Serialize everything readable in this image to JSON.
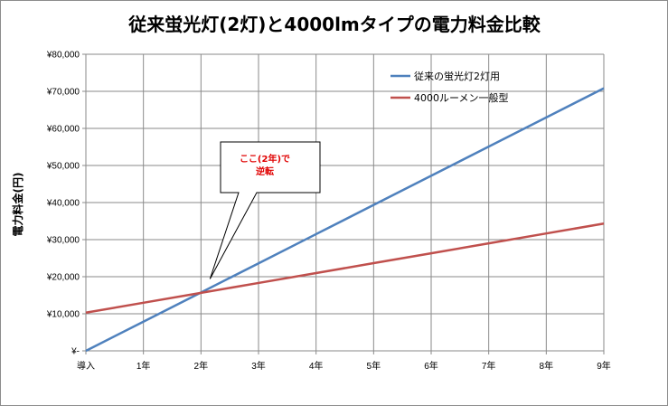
{
  "chart_data": {
    "type": "line",
    "title": "従来蛍光灯(2灯)と4000lmタイプの電力料金比較",
    "xlabel": "",
    "ylabel": "電力料金(円)",
    "categories": [
      "導入",
      "1年",
      "2年",
      "3年",
      "4年",
      "5年",
      "6年",
      "7年",
      "8年",
      "9年"
    ],
    "yticks": [
      "¥-",
      "¥10,000",
      "¥20,000",
      "¥30,000",
      "¥40,000",
      "¥50,000",
      "¥60,000",
      "¥70,000",
      "¥80,000"
    ],
    "ylim": [
      0,
      80000
    ],
    "grid": true,
    "legend_position": "top-right",
    "series": [
      {
        "name": "従来の蛍光灯2灯用",
        "color": "#4f81bd",
        "values": [
          0,
          7870,
          15740,
          23610,
          31480,
          39350,
          47220,
          55090,
          62960,
          70830
        ]
      },
      {
        "name": "4000ルーメン一般型",
        "color": "#c0504d",
        "values": [
          10300,
          12970,
          15640,
          18310,
          20980,
          23650,
          26320,
          28990,
          31660,
          34330
        ]
      }
    ],
    "annotation": {
      "lines": [
        "ここ(2年)で",
        "逆転"
      ],
      "x_category": "2年"
    }
  }
}
